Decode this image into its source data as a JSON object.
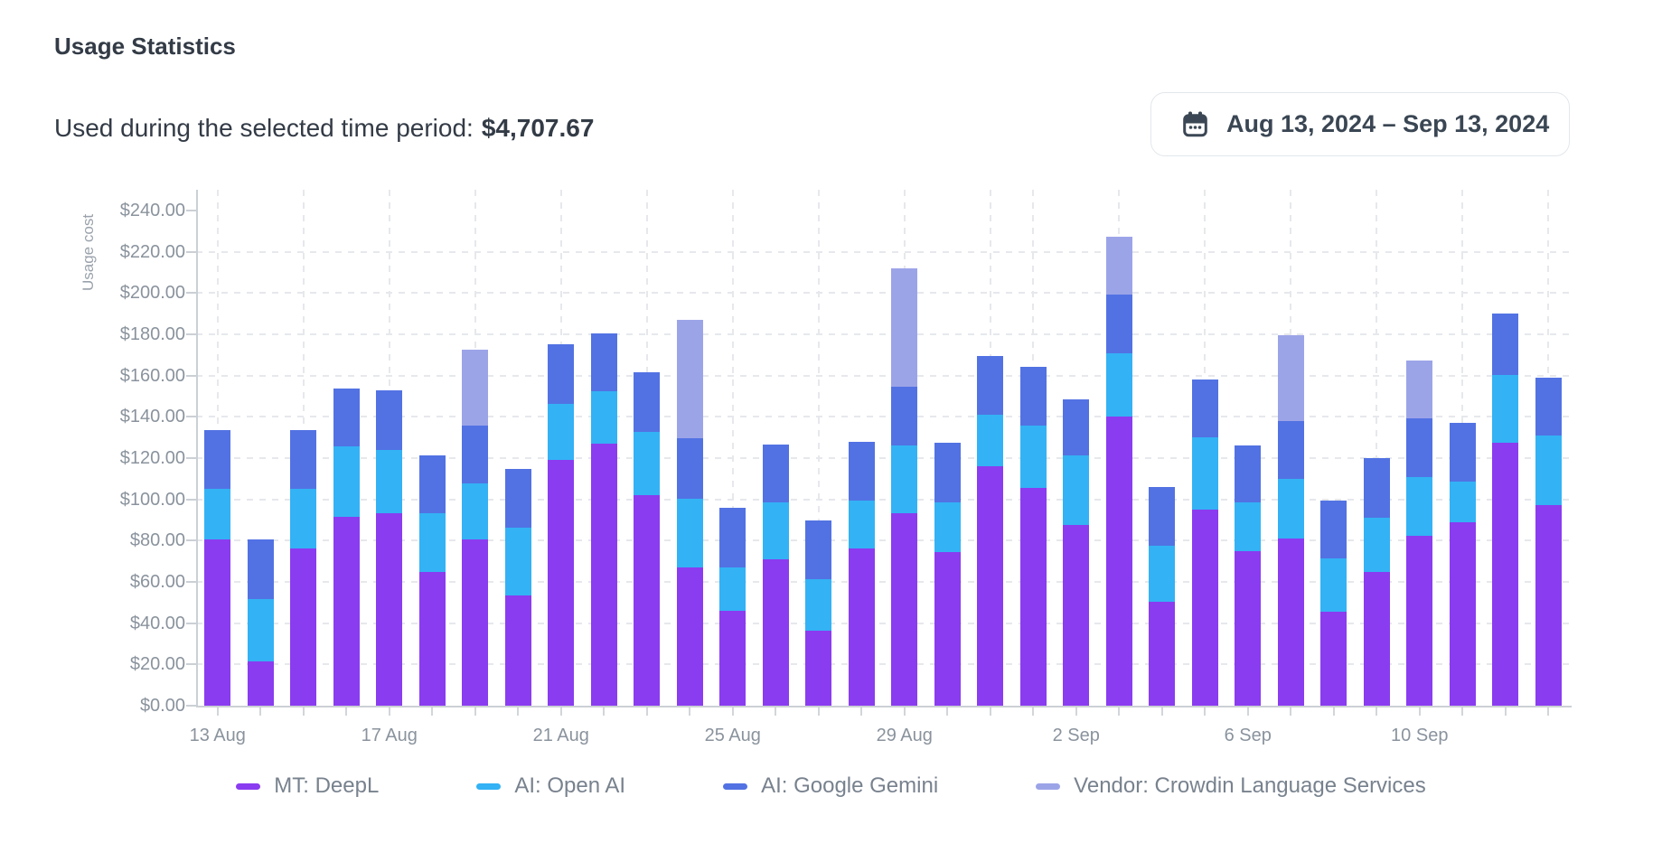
{
  "header": {
    "title": "Usage Statistics",
    "subtitle_label": "Used during the selected time period:",
    "subtitle_value": "$4,707.67",
    "date_range": "Aug 13, 2024 – Sep 13, 2024"
  },
  "chart_data": {
    "type": "bar",
    "stacked": true,
    "ylabel": "Usage cost",
    "ylim": [
      0,
      250
    ],
    "ytick_step": 20,
    "ytick_prefix": "$",
    "xtick_every": 4,
    "grid": "dashed",
    "legend_position": "bottom",
    "categories": [
      "13 Aug",
      "14 Aug",
      "15 Aug",
      "16 Aug",
      "17 Aug",
      "18 Aug",
      "19 Aug",
      "20 Aug",
      "21 Aug",
      "22 Aug",
      "23 Aug",
      "24 Aug",
      "25 Aug",
      "26 Aug",
      "27 Aug",
      "28 Aug",
      "29 Aug",
      "30 Aug",
      "31 Aug",
      "1 Sep",
      "2 Sep",
      "3 Sep",
      "4 Sep",
      "5 Sep",
      "6 Sep",
      "7 Sep",
      "8 Sep",
      "9 Sep",
      "10 Sep",
      "11 Sep",
      "12 Sep",
      "13 Sep"
    ],
    "series": [
      {
        "name": "MT: DeepL",
        "color": "#8a3cf0",
        "values": [
          80.6,
          21.5,
          76.2,
          91.6,
          93.2,
          64.8,
          80.7,
          53.3,
          119.0,
          127.1,
          102.0,
          66.9,
          46.1,
          70.8,
          36.3,
          76.1,
          93.3,
          74.6,
          116.2,
          105.6,
          87.6,
          139.9,
          50.4,
          95.0,
          74.9,
          81.1,
          45.7,
          65.0,
          82.3,
          88.9,
          127.4,
          97.1
        ]
      },
      {
        "name": "AI: Open AI",
        "color": "#33b2f5",
        "values": [
          24.5,
          30.2,
          28.9,
          33.9,
          30.6,
          28.4,
          27.0,
          33.0,
          27.4,
          25.2,
          30.8,
          33.5,
          20.8,
          27.5,
          25.2,
          23.3,
          33.0,
          24.0,
          24.8,
          30.1,
          33.6,
          31.0,
          27.1,
          35.0,
          23.4,
          28.9,
          25.6,
          26.2,
          28.6,
          19.6,
          32.9,
          33.7
        ]
      },
      {
        "name": "AI: Google Gemini",
        "color": "#5272e3",
        "values": [
          28.5,
          28.9,
          28.5,
          28.2,
          29.2,
          28.1,
          28.1,
          28.4,
          28.8,
          28.2,
          28.7,
          29.2,
          29.2,
          28.3,
          28.3,
          28.5,
          28.3,
          28.9,
          28.4,
          28.5,
          27.4,
          28.1,
          28.5,
          28.1,
          28.0,
          28.1,
          28.0,
          28.9,
          28.5,
          28.5,
          29.8,
          28.1
        ]
      },
      {
        "name": "Vendor: Crowdin Language Services",
        "color": "#9ca4e8",
        "values": [
          0,
          0,
          0,
          0,
          0,
          0,
          36.8,
          0,
          0,
          0,
          0,
          57.3,
          0,
          0,
          0,
          0,
          57.4,
          0,
          0,
          0,
          0,
          28.3,
          0,
          0,
          0,
          41.2,
          0,
          0,
          28.0,
          0,
          0,
          0
        ]
      }
    ]
  }
}
